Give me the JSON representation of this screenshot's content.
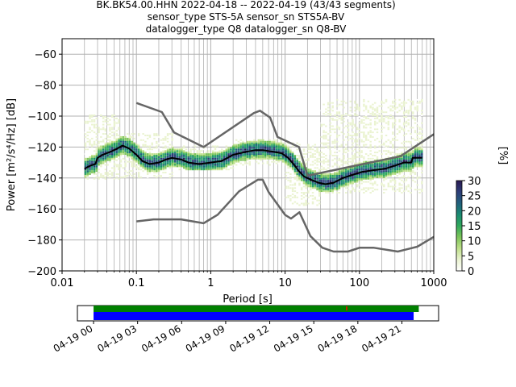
{
  "title_lines": [
    "BK.BK54.00.HHN   2022-04-18 -- 2022-04-19  (43/43 segments)",
    "sensor_type STS-5A sensor_sn STS5A-BV",
    "datalogger_type Q8 datalogger_sn Q8-BV"
  ],
  "chart_data": [
    {
      "type": "heatmap",
      "xlabel": "Period [s]",
      "ylabel": "Power [m²/s⁴/Hz] [dB]",
      "xscale": "log",
      "xlim": [
        0.01,
        1000
      ],
      "ylim": [
        -200,
        -50
      ],
      "x_ticks": [
        {
          "value": 0.01,
          "label": "0.01"
        },
        {
          "value": 0.1,
          "label": "0.1"
        },
        {
          "value": 1,
          "label": "1"
        },
        {
          "value": 10,
          "label": "10"
        },
        {
          "value": 100,
          "label": "100"
        },
        {
          "value": 1000,
          "label": "1000"
        }
      ],
      "y_ticks": [
        -60,
        -80,
        -100,
        -120,
        -140,
        -160,
        -180,
        -200
      ],
      "y_tick_labels": [
        "−60",
        "−80",
        "−100",
        "−120",
        "−140",
        "−160",
        "−180",
        "−200"
      ],
      "grid": true,
      "colorbar": {
        "label": "[%]",
        "range": [
          0,
          30
        ],
        "ticks": [
          0,
          5,
          10,
          15,
          20,
          25,
          30
        ],
        "colors": [
          "#ffffff",
          "#eaf3d0",
          "#bfe08a",
          "#7cc45a",
          "#2fa85c",
          "#1a8a72",
          "#22607c",
          "#2d3d78",
          "#2a1a52"
        ]
      },
      "mode_curve": {
        "color": "#000000",
        "points": [
          [
            0.02,
            -134
          ],
          [
            0.024,
            -132
          ],
          [
            0.028,
            -131
          ],
          [
            0.03,
            -127
          ],
          [
            0.035,
            -125
          ],
          [
            0.045,
            -123
          ],
          [
            0.055,
            -121
          ],
          [
            0.065,
            -119
          ],
          [
            0.08,
            -121
          ],
          [
            0.1,
            -125
          ],
          [
            0.12,
            -129
          ],
          [
            0.15,
            -131
          ],
          [
            0.2,
            -130
          ],
          [
            0.25,
            -128
          ],
          [
            0.3,
            -127
          ],
          [
            0.4,
            -128
          ],
          [
            0.5,
            -130
          ],
          [
            0.7,
            -131
          ],
          [
            1,
            -130
          ],
          [
            1.4,
            -129
          ],
          [
            2,
            -125
          ],
          [
            3,
            -123
          ],
          [
            4,
            -122
          ],
          [
            5,
            -122
          ],
          [
            7,
            -123
          ],
          [
            9,
            -124
          ],
          [
            11,
            -127
          ],
          [
            13,
            -131
          ],
          [
            15,
            -135
          ],
          [
            18,
            -139
          ],
          [
            22,
            -141
          ],
          [
            28,
            -143
          ],
          [
            35,
            -144
          ],
          [
            45,
            -143
          ],
          [
            60,
            -140
          ],
          [
            80,
            -138
          ],
          [
            110,
            -136
          ],
          [
            150,
            -135
          ],
          [
            220,
            -134
          ],
          [
            300,
            -132
          ],
          [
            400,
            -130
          ],
          [
            500,
            -130
          ],
          [
            520,
            -127
          ],
          [
            700,
            -127
          ]
        ]
      },
      "nhnm_curve": {
        "color": "#666666",
        "points": [
          [
            0.1,
            -91.5
          ],
          [
            0.22,
            -97.4
          ],
          [
            0.32,
            -110.5
          ],
          [
            0.8,
            -120
          ],
          [
            3.8,
            -98
          ],
          [
            4.6,
            -96.5
          ],
          [
            6.3,
            -101
          ],
          [
            7.9,
            -113.5
          ],
          [
            15.4,
            -120
          ],
          [
            20,
            -138.5
          ],
          [
            354.8,
            -126
          ],
          [
            10000,
            -80
          ]
        ]
      },
      "nlnm_curve": {
        "color": "#666666",
        "points": [
          [
            0.1,
            -168
          ],
          [
            0.17,
            -166.7
          ],
          [
            0.4,
            -166.7
          ],
          [
            0.8,
            -169.2
          ],
          [
            1.24,
            -163.7
          ],
          [
            2.4,
            -148.6
          ],
          [
            4.3,
            -141.1
          ],
          [
            5,
            -141.1
          ],
          [
            6,
            -149
          ],
          [
            10,
            -163.8
          ],
          [
            12,
            -166.2
          ],
          [
            15.6,
            -162.1
          ],
          [
            21.9,
            -177.5
          ],
          [
            31.6,
            -185
          ],
          [
            45,
            -187.5
          ],
          [
            70,
            -187.5
          ],
          [
            101,
            -185
          ],
          [
            154,
            -185
          ],
          [
            328,
            -187.5
          ],
          [
            600,
            -184.4
          ],
          [
            1000,
            -178
          ]
        ]
      },
      "density_bands": [
        {
          "x_from": 0.02,
          "x_to": 0.06,
          "low": -141,
          "high": -100
        },
        {
          "x_from": 0.06,
          "x_to": 0.3,
          "low": -140,
          "high": -112
        },
        {
          "x_from": 0.3,
          "x_to": 2,
          "low": -135,
          "high": -120
        },
        {
          "x_from": 2,
          "x_to": 10,
          "low": -132,
          "high": -116
        },
        {
          "x_from": 10,
          "x_to": 30,
          "low": -158,
          "high": -118
        },
        {
          "x_from": 30,
          "x_to": 700,
          "low": -150,
          "high": -90
        }
      ]
    },
    {
      "type": "bar",
      "title": "",
      "x_tick_labels": [
        "04-19 00",
        "04-19 03",
        "04-19 06",
        "04-19 09",
        "04-19 12",
        "04-19 15",
        "04-19 18",
        "04-19 21"
      ],
      "x_ticks_hours": [
        0,
        3,
        6,
        9,
        12,
        15,
        18,
        21
      ],
      "xlim_hours": [
        -1.1,
        23.5
      ],
      "series": [
        {
          "color": "#008000",
          "start_hours": 0,
          "end_hours": 22.15
        },
        {
          "color": "#0000ff",
          "start_hours": 0,
          "end_hours": 21.8
        }
      ],
      "marker": {
        "color": "#ff0000",
        "at_hours": 17.2
      }
    }
  ]
}
